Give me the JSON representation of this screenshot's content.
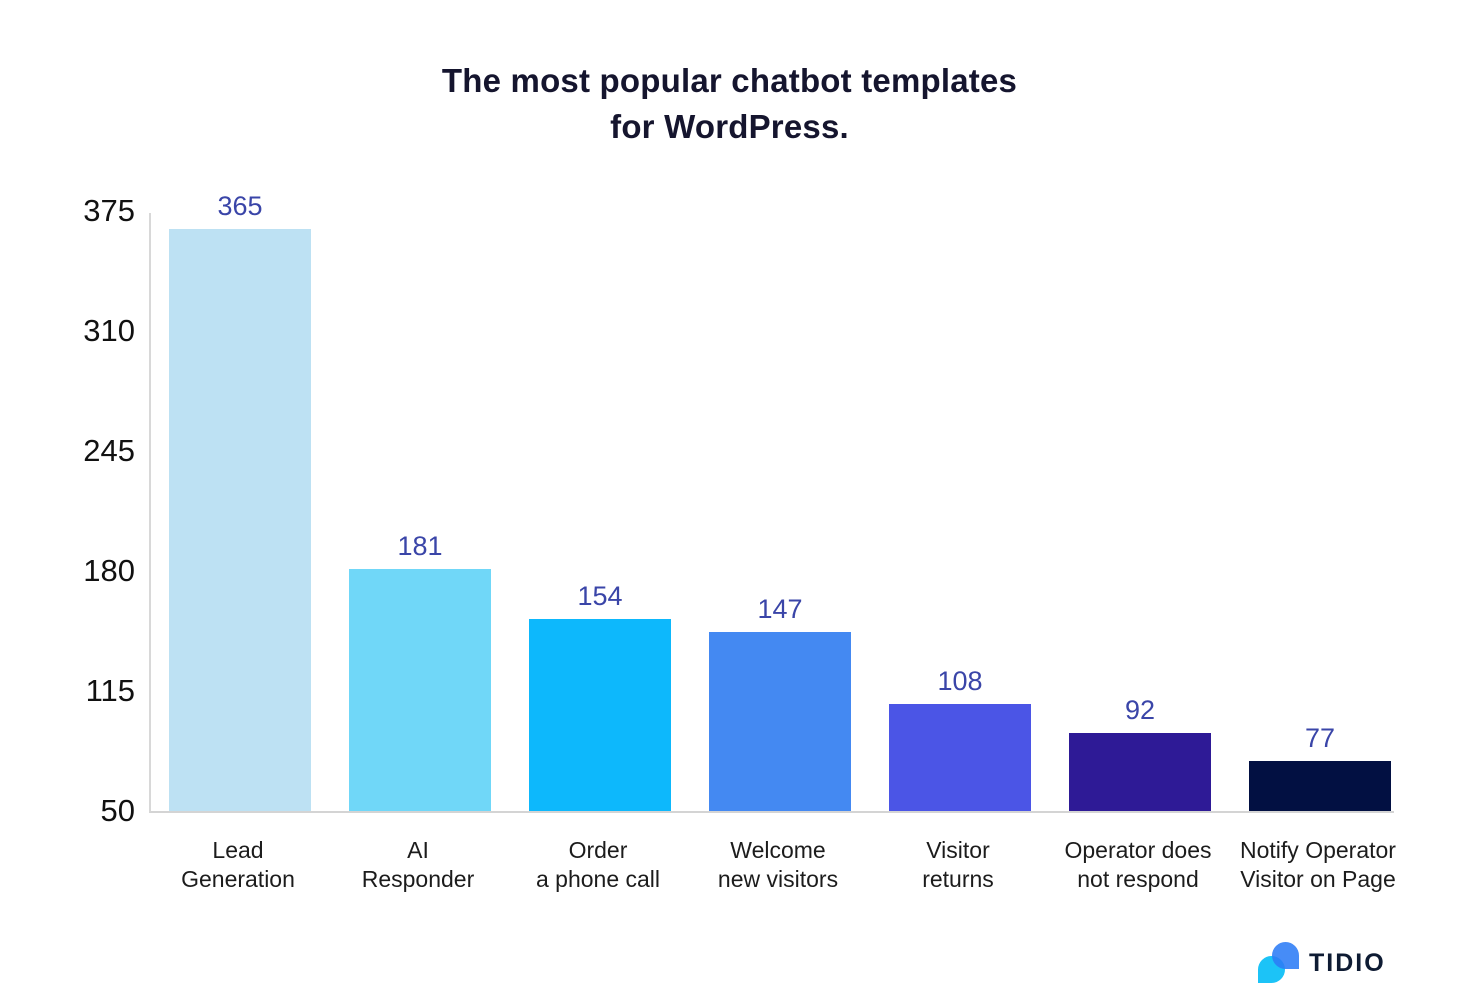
{
  "chart_data": {
    "type": "bar",
    "title_lines": [
      "The most popular chatbot templates",
      "for WordPress."
    ],
    "title": "The most popular chatbot templates for WordPress.",
    "categories": [
      {
        "id": "lead-generation",
        "lines": [
          "Lead",
          "Generation"
        ]
      },
      {
        "id": "ai-responder",
        "lines": [
          "AI",
          "Responder"
        ]
      },
      {
        "id": "order-phone-call",
        "lines": [
          "Order",
          "a phone call"
        ]
      },
      {
        "id": "welcome-new-visitors",
        "lines": [
          "Welcome",
          "new visitors"
        ]
      },
      {
        "id": "visitor-returns",
        "lines": [
          "Visitor",
          "returns"
        ]
      },
      {
        "id": "operator-does-not-respond",
        "lines": [
          "Operator does",
          "not respond"
        ]
      },
      {
        "id": "notify-operator-visitor-on-page",
        "lines": [
          "Notify Operator",
          "Visitor on Page"
        ]
      }
    ],
    "values": [
      365,
      181,
      154,
      147,
      108,
      92,
      77
    ],
    "bar_colors": [
      "#bde1f3",
      "#70d7f8",
      "#0db8fc",
      "#4489f2",
      "#4b55e6",
      "#2e1a96",
      "#021042"
    ],
    "y_ticks": [
      375,
      310,
      245,
      180,
      115,
      50
    ],
    "ylim": [
      50,
      375
    ],
    "xlabel": "",
    "ylabel": "",
    "grid": false,
    "legend": "none",
    "value_label_color": "#3a45a8",
    "axis_line_color": "#d8d8d8"
  },
  "logo": {
    "text": "TIDIO",
    "bubble_blue": "#2c7cf6",
    "bubble_cyan": "#1cc3f7",
    "text_color": "#0e1b33"
  }
}
